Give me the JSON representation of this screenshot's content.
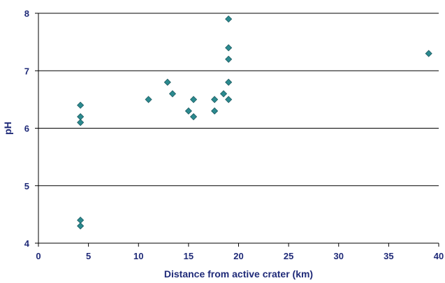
{
  "chart_data": {
    "type": "scatter",
    "title": "",
    "xlabel": "Distance from active crater (km)",
    "ylabel": "pH",
    "xlim": [
      0,
      40
    ],
    "ylim": [
      4,
      8
    ],
    "xticks": [
      0,
      5,
      10,
      15,
      20,
      25,
      30,
      35,
      40
    ],
    "yticks": [
      4,
      5,
      6,
      7,
      8
    ],
    "grid": "horizontal",
    "legend": "none",
    "marker": "diamond",
    "marker_color": "#2b8a8f",
    "marker_edge_color": "#1d5a60",
    "series": [
      {
        "points": [
          {
            "x": 4.2,
            "y": 6.4
          },
          {
            "x": 4.2,
            "y": 6.2
          },
          {
            "x": 4.2,
            "y": 6.1
          },
          {
            "x": 4.2,
            "y": 4.4
          },
          {
            "x": 4.2,
            "y": 4.3
          },
          {
            "x": 11.0,
            "y": 6.5
          },
          {
            "x": 12.9,
            "y": 6.8
          },
          {
            "x": 13.4,
            "y": 6.6
          },
          {
            "x": 15.0,
            "y": 6.3
          },
          {
            "x": 15.5,
            "y": 6.5
          },
          {
            "x": 15.5,
            "y": 6.2
          },
          {
            "x": 17.6,
            "y": 6.5
          },
          {
            "x": 17.6,
            "y": 6.3
          },
          {
            "x": 18.5,
            "y": 6.6
          },
          {
            "x": 19.0,
            "y": 7.9
          },
          {
            "x": 19.0,
            "y": 7.4
          },
          {
            "x": 19.0,
            "y": 7.2
          },
          {
            "x": 19.0,
            "y": 6.8
          },
          {
            "x": 19.0,
            "y": 6.5
          },
          {
            "x": 39.0,
            "y": 7.3
          }
        ]
      }
    ]
  }
}
